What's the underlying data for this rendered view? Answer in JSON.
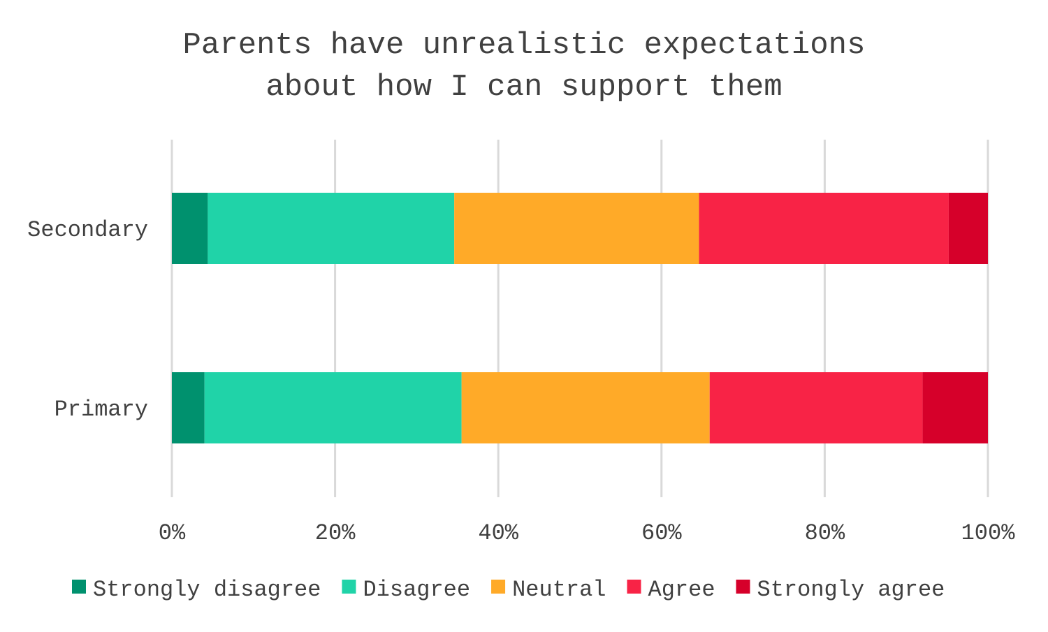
{
  "chart_data": {
    "type": "bar",
    "orientation": "horizontal",
    "stacked": "percent",
    "title": [
      "Parents have unrealistic expectations",
      "about how I can support them"
    ],
    "categories": [
      "Secondary",
      "Primary"
    ],
    "series": [
      {
        "name": "Strongly disagree",
        "color": "#00916E",
        "values": [
          4.4,
          4.0
        ]
      },
      {
        "name": "Disagree",
        "color": "#20D3A8",
        "values": [
          30.2,
          31.5
        ]
      },
      {
        "name": "Neutral",
        "color": "#FFAA28",
        "values": [
          30.0,
          30.4
        ]
      },
      {
        "name": "Agree",
        "color": "#F82346",
        "values": [
          30.6,
          26.1
        ]
      },
      {
        "name": "Strongly agree",
        "color": "#D6002A",
        "values": [
          4.8,
          8.0
        ]
      }
    ],
    "xlim": [
      0,
      100
    ],
    "xticks": [
      "0%",
      "20%",
      "40%",
      "60%",
      "80%",
      "100%"
    ],
    "xlabel": "",
    "ylabel": "",
    "grid": true,
    "legend_position": "bottom"
  }
}
